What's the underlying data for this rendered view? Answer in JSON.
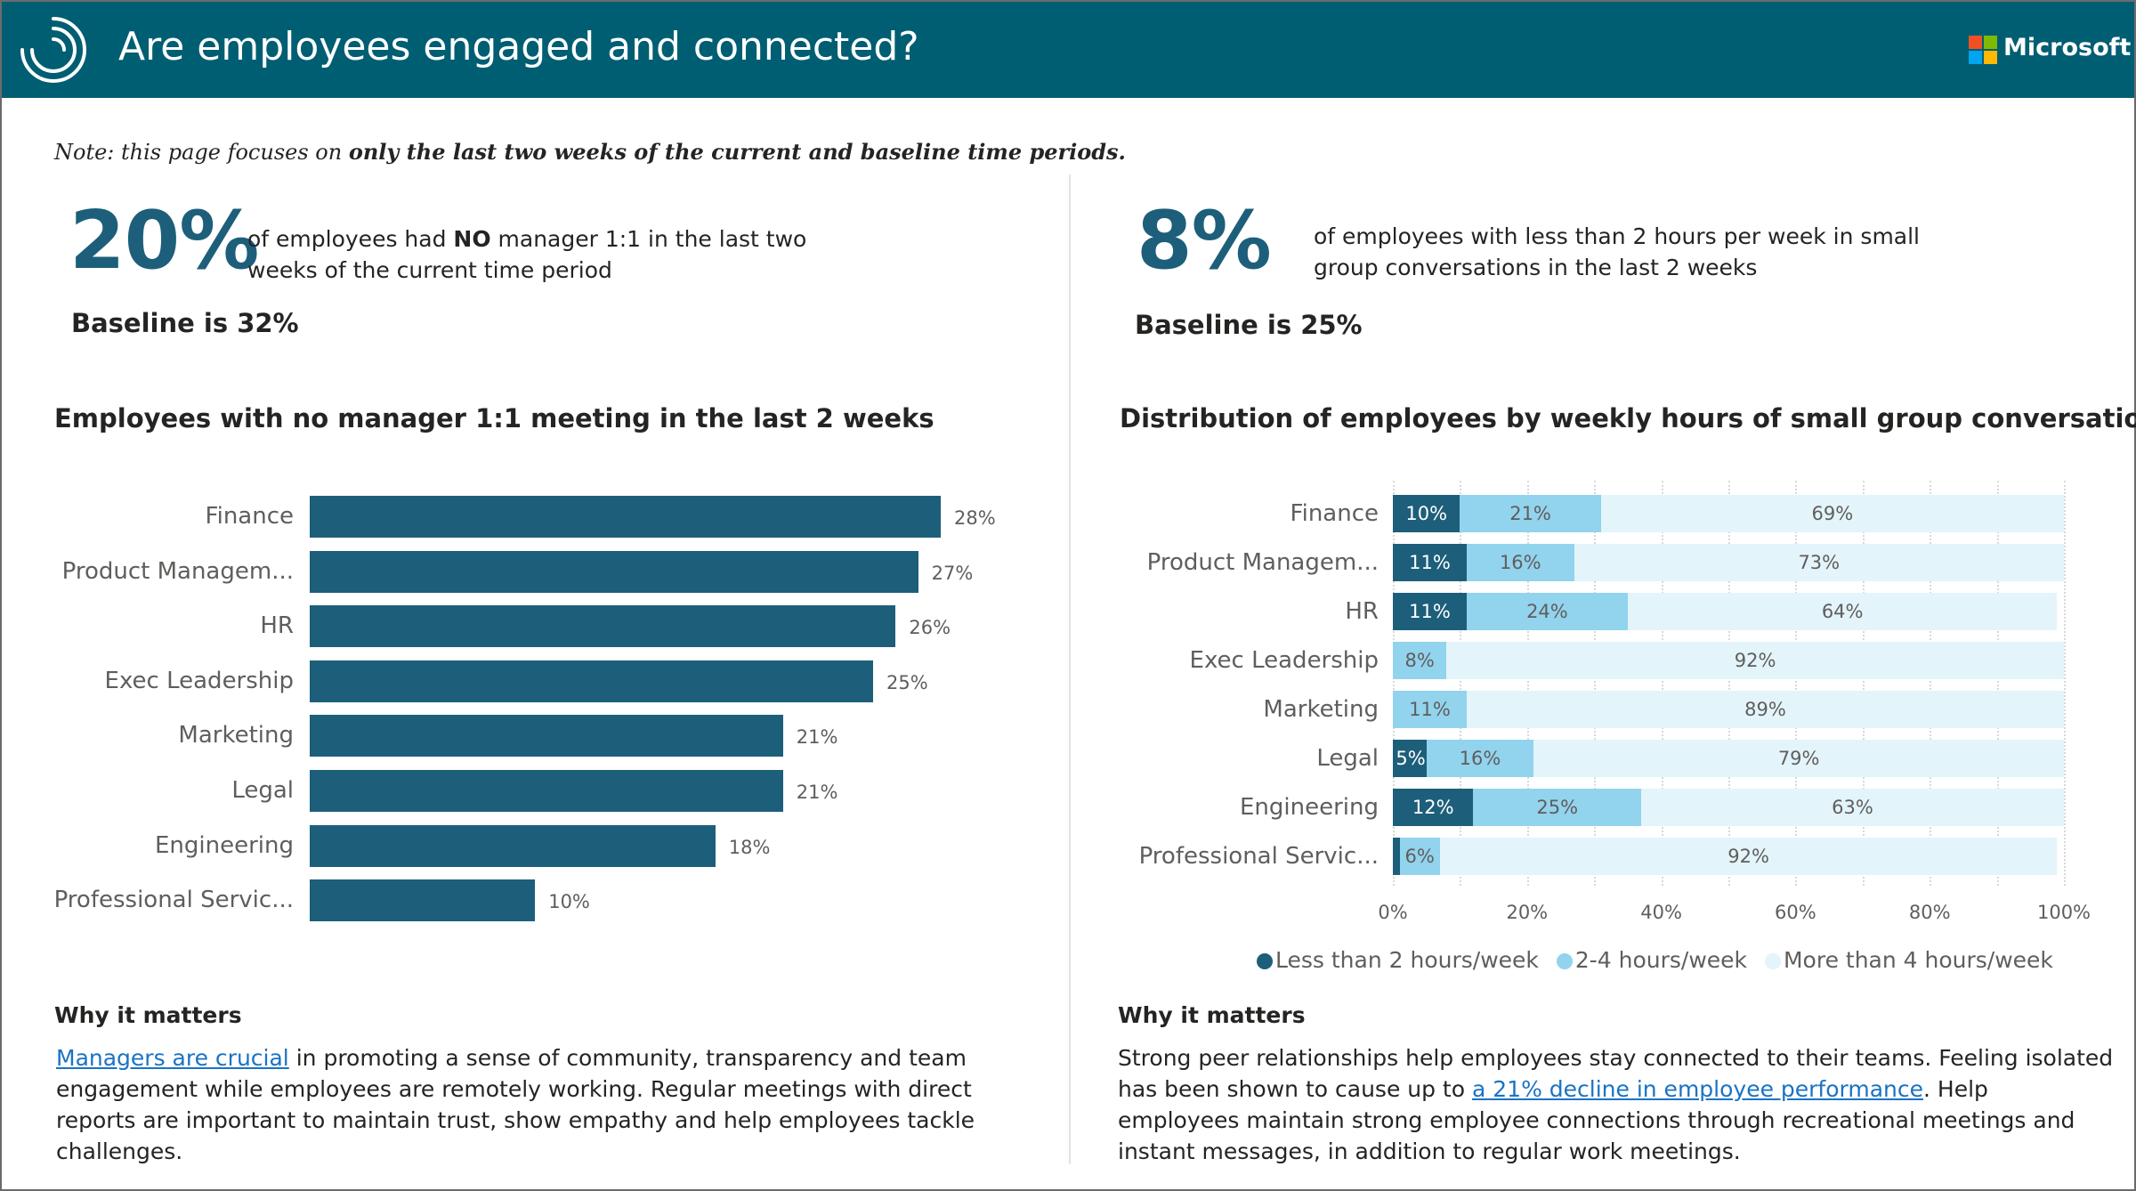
{
  "header": {
    "title": "Are employees engaged and connected?",
    "brand": "Microsoft",
    "background_color": "#005e73",
    "logo_icon": "circular-swirl-logo-icon",
    "brand_icon": "microsoft-logo-icon"
  },
  "note": {
    "prefix": "Note: this page focuses on ",
    "emphasis": "only the last two weeks of the current and baseline time periods."
  },
  "left": {
    "kpi_value": "20%",
    "kpi_text_before": "of employees had ",
    "kpi_text_bold": "NO",
    "kpi_text_after": " manager 1:1 in the last two weeks of the current time period",
    "baseline": "Baseline is 32%",
    "chart_title": "Employees with no manager 1:1 meeting in the last 2 weeks",
    "why_heading": "Why it matters",
    "why_link": "Managers are crucial",
    "why_text": " in promoting a sense of community, transparency and team engagement while employees are remotely working. Regular meetings with direct reports are important to maintain trust, show empathy and help employees tackle challenges."
  },
  "right": {
    "kpi_value": "8%",
    "kpi_text": "of employees with less than 2 hours per week in small group conversations in the last 2 weeks",
    "baseline": "Baseline is 25%",
    "chart_title": "Distribution of employees by weekly hours of small group conversations",
    "why_heading": "Why it matters",
    "why_text_1": "Strong peer relationships help employees stay connected to their teams. Feeling isolated has been shown to cause up to ",
    "why_link": "a 21% decline in employee performance",
    "why_text_2": ". Help employees maintain strong employee connections through recreational meetings and instant messages, in addition to regular work meetings."
  },
  "chart_data": [
    {
      "type": "bar",
      "orientation": "horizontal",
      "title": "Employees with no manager 1:1 meeting in the last 2 weeks",
      "categories": [
        "Finance",
        "Product Managem...",
        "HR",
        "Exec Leadership",
        "Marketing",
        "Legal",
        "Engineering",
        "Professional Servic..."
      ],
      "values": [
        28,
        27,
        26,
        25,
        21,
        21,
        18,
        10
      ],
      "value_labels": [
        "28%",
        "27%",
        "26%",
        "25%",
        "21%",
        "21%",
        "18%",
        "10%"
      ],
      "unit": "%",
      "color": "#1d5f7a"
    },
    {
      "type": "bar",
      "orientation": "horizontal",
      "stacked": "100%",
      "title": "Distribution of employees by weekly hours of small group conversations",
      "categories": [
        "Finance",
        "Product Managem...",
        "HR",
        "Exec Leadership",
        "Marketing",
        "Legal",
        "Engineering",
        "Professional Servic..."
      ],
      "series": [
        {
          "name": "Less than 2 hours/week",
          "color": "#1d5f7a",
          "values": [
            10,
            11,
            11,
            0,
            0,
            5,
            12,
            1
          ],
          "labels": [
            "10%",
            "11%",
            "11%",
            "",
            "",
            "5%",
            "12%",
            ""
          ]
        },
        {
          "name": "2-4 hours/week",
          "color": "#92d3ee",
          "values": [
            21,
            16,
            24,
            8,
            11,
            16,
            25,
            6
          ],
          "labels": [
            "21%",
            "16%",
            "24%",
            "8%",
            "11%",
            "16%",
            "25%",
            "6%"
          ]
        },
        {
          "name": "More than 4 hours/week",
          "color": "#e3f4fb",
          "values": [
            69,
            73,
            64,
            92,
            89,
            79,
            63,
            92
          ],
          "labels": [
            "69%",
            "73%",
            "64%",
            "92%",
            "89%",
            "79%",
            "63%",
            "92%"
          ]
        }
      ],
      "x_ticks": [
        "0%",
        "20%",
        "40%",
        "60%",
        "80%",
        "100%"
      ],
      "xlim": [
        0,
        100
      ],
      "grid": "vertical dotted",
      "legend_position": "bottom"
    }
  ]
}
